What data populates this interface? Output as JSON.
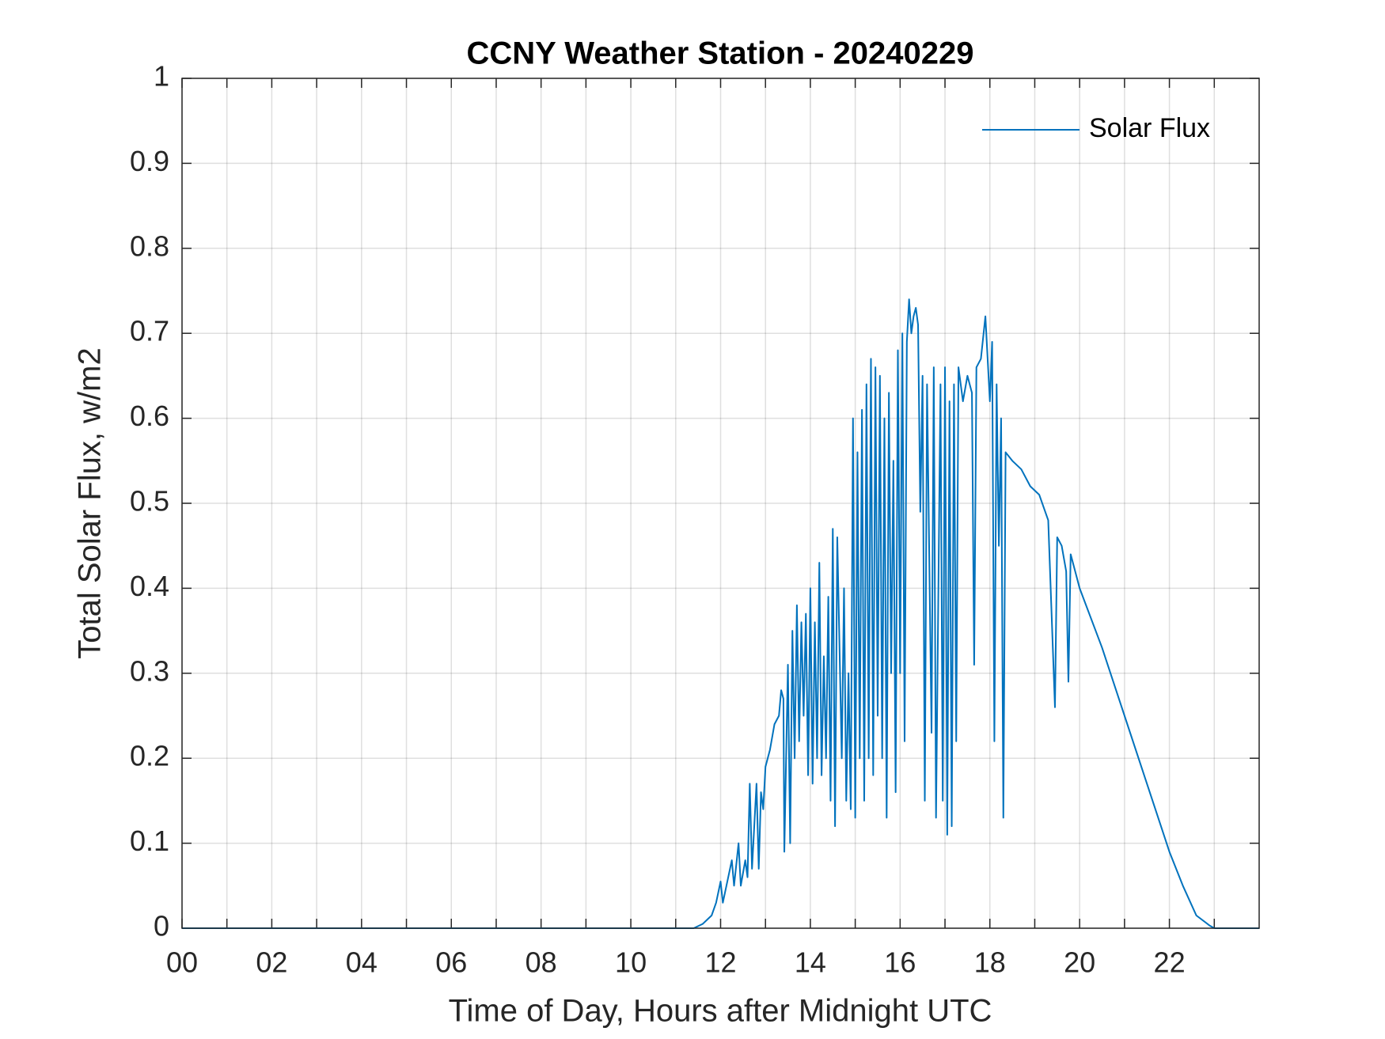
{
  "chart_data": {
    "type": "line",
    "title": "CCNY Weather Station - 20240229",
    "xlabel": "Time of Day, Hours after Midnight UTC",
    "ylabel": "Total Solar Flux, w/m2",
    "xlim": [
      0,
      24
    ],
    "xticks": [
      {
        "value": 0,
        "label": "00"
      },
      {
        "value": 2,
        "label": "02"
      },
      {
        "value": 4,
        "label": "04"
      },
      {
        "value": 6,
        "label": "06"
      },
      {
        "value": 8,
        "label": "08"
      },
      {
        "value": 10,
        "label": "10"
      },
      12,
      14,
      16,
      18,
      20,
      22
    ],
    "xminorticks": [
      1,
      3,
      5,
      7,
      9,
      11,
      13,
      15,
      17,
      19,
      21,
      23
    ],
    "ylim": [
      0,
      1
    ],
    "yticks": [
      0,
      0.1,
      0.2,
      0.3,
      0.4,
      0.5,
      0.6,
      0.7,
      0.8,
      0.9,
      1
    ],
    "grid": true,
    "legend": "upper right",
    "x": [
      0,
      11.4,
      11.6,
      11.8,
      11.9,
      12.0,
      12.05,
      12.15,
      12.25,
      12.3,
      12.4,
      12.45,
      12.55,
      12.6,
      12.65,
      12.7,
      12.8,
      12.85,
      12.9,
      12.95,
      13.0,
      13.1,
      13.2,
      13.3,
      13.35,
      13.4,
      13.42,
      13.5,
      13.55,
      13.6,
      13.65,
      13.7,
      13.75,
      13.8,
      13.85,
      13.9,
      13.95,
      14.0,
      14.05,
      14.1,
      14.15,
      14.2,
      14.25,
      14.3,
      14.35,
      14.4,
      14.45,
      14.5,
      14.55,
      14.6,
      14.7,
      14.75,
      14.8,
      14.85,
      14.9,
      14.95,
      15.0,
      15.05,
      15.1,
      15.15,
      15.2,
      15.25,
      15.3,
      15.35,
      15.4,
      15.45,
      15.5,
      15.55,
      15.6,
      15.65,
      15.7,
      15.75,
      15.8,
      15.85,
      15.9,
      15.95,
      16.0,
      16.05,
      16.1,
      16.15,
      16.2,
      16.25,
      16.3,
      16.35,
      16.4,
      16.45,
      16.5,
      16.55,
      16.6,
      16.7,
      16.75,
      16.8,
      16.9,
      16.95,
      17.0,
      17.05,
      17.1,
      17.15,
      17.2,
      17.25,
      17.3,
      17.4,
      17.5,
      17.6,
      17.65,
      17.7,
      17.8,
      17.9,
      18.0,
      18.05,
      18.1,
      18.15,
      18.2,
      18.25,
      18.3,
      18.35,
      18.5,
      18.7,
      18.9,
      19.1,
      19.3,
      19.45,
      19.5,
      19.6,
      19.7,
      19.75,
      19.8,
      19.9,
      20.0,
      20.5,
      21.0,
      21.5,
      22.0,
      22.3,
      22.6,
      22.9,
      23.0,
      24
    ],
    "series": [
      {
        "name": "Solar Flux",
        "color": "#0072bd",
        "values": [
          0,
          0,
          0.005,
          0.015,
          0.03,
          0.055,
          0.03,
          0.055,
          0.08,
          0.05,
          0.1,
          0.05,
          0.08,
          0.06,
          0.17,
          0.07,
          0.17,
          0.07,
          0.16,
          0.14,
          0.19,
          0.21,
          0.24,
          0.25,
          0.28,
          0.27,
          0.09,
          0.31,
          0.1,
          0.35,
          0.2,
          0.38,
          0.22,
          0.36,
          0.25,
          0.37,
          0.18,
          0.4,
          0.17,
          0.36,
          0.2,
          0.43,
          0.18,
          0.32,
          0.2,
          0.39,
          0.15,
          0.47,
          0.12,
          0.46,
          0.2,
          0.4,
          0.15,
          0.3,
          0.14,
          0.6,
          0.13,
          0.56,
          0.2,
          0.61,
          0.15,
          0.64,
          0.2,
          0.67,
          0.18,
          0.66,
          0.25,
          0.65,
          0.2,
          0.6,
          0.13,
          0.63,
          0.3,
          0.55,
          0.16,
          0.68,
          0.3,
          0.7,
          0.22,
          0.69,
          0.74,
          0.7,
          0.72,
          0.73,
          0.71,
          0.49,
          0.65,
          0.15,
          0.64,
          0.23,
          0.66,
          0.13,
          0.64,
          0.15,
          0.66,
          0.11,
          0.62,
          0.12,
          0.64,
          0.22,
          0.66,
          0.62,
          0.65,
          0.63,
          0.31,
          0.66,
          0.67,
          0.72,
          0.62,
          0.69,
          0.22,
          0.64,
          0.45,
          0.6,
          0.13,
          0.56,
          0.55,
          0.54,
          0.52,
          0.51,
          0.48,
          0.26,
          0.46,
          0.45,
          0.42,
          0.29,
          0.44,
          0.42,
          0.4,
          0.33,
          0.25,
          0.17,
          0.09,
          0.05,
          0.015,
          0.003,
          0,
          0
        ]
      }
    ]
  }
}
